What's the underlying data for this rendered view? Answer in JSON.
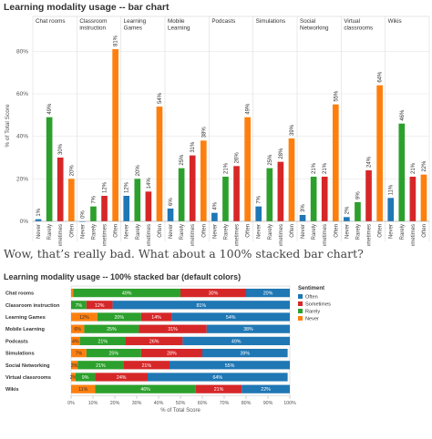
{
  "page": {
    "title1": "Learning modality usage -- bar chart",
    "prose": "Wow, that’s really bad. What about a 100% stacked bar chart?",
    "title2": "Learning modality usage -- 100% stacked bar (default colors)"
  },
  "colors": {
    "Never": "#f28e2b",
    "Rarely": "#2ca02c",
    "Sometimes": "#d62728",
    "Often": "#ff7f0e",
    "OftenBlue": "#1f77b4"
  },
  "chart_data": [
    {
      "type": "bar",
      "title": "Learning modality usage -- bar chart",
      "ylabel": "% of Total Score",
      "ylim": [
        0,
        90
      ],
      "yticks": [
        "0%",
        "20%",
        "40%",
        "60%",
        "80%"
      ],
      "sub_categories": [
        "Never",
        "Rarely",
        "Sometimes",
        "Often"
      ],
      "panels": [
        {
          "name": "Chat rooms",
          "values": [
            1,
            49,
            30,
            20
          ]
        },
        {
          "name": "Classroom instruction",
          "values": [
            0,
            7,
            12,
            81
          ]
        },
        {
          "name": "Learning Games",
          "values": [
            12,
            20,
            14,
            54
          ]
        },
        {
          "name": "Mobile Learning",
          "values": [
            6,
            25,
            31,
            38
          ]
        },
        {
          "name": "Podcasts",
          "values": [
            4,
            21,
            26,
            49
          ]
        },
        {
          "name": "Simulations",
          "values": [
            7,
            25,
            28,
            39
          ]
        },
        {
          "name": "Social Networking",
          "values": [
            3,
            21,
            21,
            55
          ]
        },
        {
          "name": "Virtual classrooms",
          "values": [
            2,
            9,
            24,
            64
          ]
        },
        {
          "name": "Wikis",
          "values": [
            11,
            46,
            21,
            22
          ]
        }
      ],
      "bar_colors": [
        "#1f77b4",
        "#2ca02c",
        "#d62728",
        "#ff7f0e"
      ]
    },
    {
      "type": "bar",
      "title": "Learning modality usage -- 100% stacked bar (default colors)",
      "xlabel": "% of Total Score",
      "xticks": [
        "0%",
        "10%",
        "20%",
        "30%",
        "40%",
        "50%",
        "60%",
        "70%",
        "80%",
        "90%",
        "100%"
      ],
      "categories": [
        "Chat rooms",
        "Classroom instruction",
        "Learning Games",
        "Mobile Learning",
        "Podcasts",
        "Simulations",
        "Social Networking",
        "Virtual classrooms",
        "Wikis"
      ],
      "stack_order": [
        "Never",
        "Rarely",
        "Sometimes",
        "Often"
      ],
      "series": [
        {
          "name": "Never",
          "color": "#ff7f0e",
          "values": [
            1,
            0,
            12,
            6,
            4,
            7,
            3,
            2,
            11
          ]
        },
        {
          "name": "Rarely",
          "color": "#2ca02c",
          "values": [
            49,
            7,
            20,
            25,
            21,
            25,
            21,
            9,
            46
          ]
        },
        {
          "name": "Sometimes",
          "color": "#d62728",
          "values": [
            30,
            12,
            14,
            31,
            26,
            28,
            21,
            24,
            21
          ]
        },
        {
          "name": "Often",
          "color": "#1f77b4",
          "values": [
            20,
            81,
            54,
            38,
            49,
            39,
            55,
            64,
            22
          ]
        }
      ],
      "labels": [
        [
          "",
          "49%",
          "30%",
          "20%"
        ],
        [
          "",
          "7%",
          "12%",
          "81%"
        ],
        [
          "12%",
          "20%",
          "14%",
          "54%"
        ],
        [
          "6%",
          "25%",
          "31%",
          "38%"
        ],
        [
          "4%",
          "21%",
          "26%",
          "49%"
        ],
        [
          "7%",
          "25%",
          "28%",
          "39%"
        ],
        [
          "3%",
          "21%",
          "21%",
          "55%"
        ],
        [
          "2%",
          "9%",
          "24%",
          "64%"
        ],
        [
          "11%",
          "46%",
          "21%",
          "22%"
        ]
      ],
      "legend_title": "Sentiment",
      "legend_items": [
        {
          "name": "Often",
          "color": "#1f77b4"
        },
        {
          "name": "Sometimes",
          "color": "#d62728"
        },
        {
          "name": "Rarely",
          "color": "#2ca02c"
        },
        {
          "name": "Never",
          "color": "#ff7f0e"
        }
      ],
      "legend_position": "right"
    }
  ]
}
